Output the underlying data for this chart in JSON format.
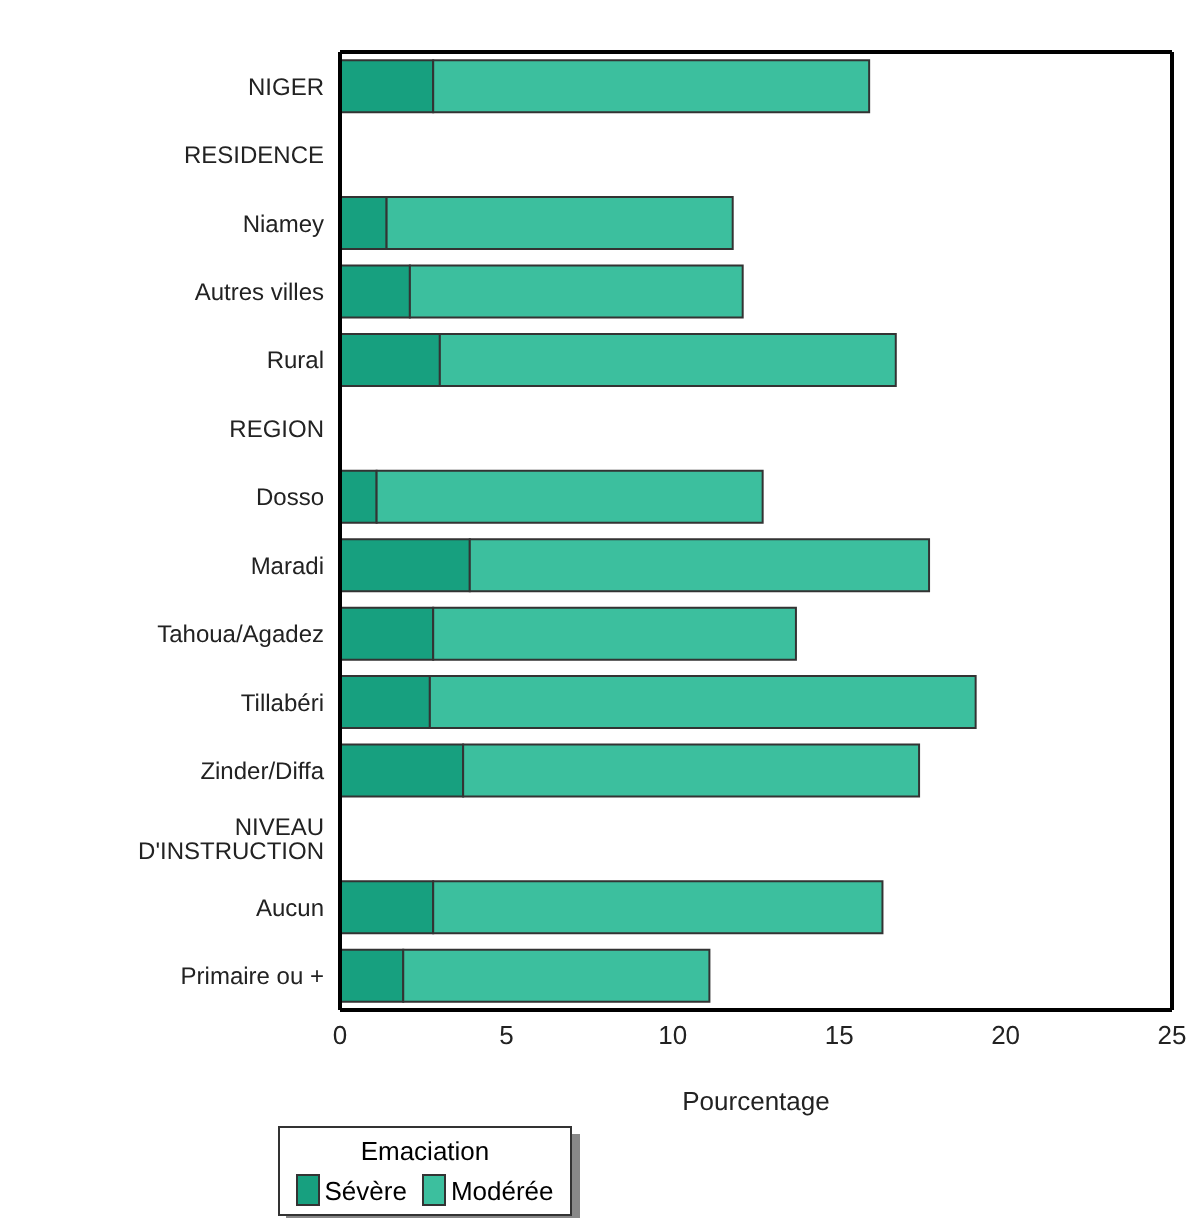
{
  "chart_data": {
    "type": "bar",
    "orientation": "horizontal",
    "stacked": true,
    "categories": [
      "NIGER",
      "RESIDENCE",
      "Niamey",
      "Autres villes",
      "Rural",
      "REGION",
      "Dosso",
      "Maradi",
      "Tahoua/Agadez",
      "Tillabéri",
      "Zinder/Diffa",
      "NIVEAU D'INSTRUCTION",
      "Aucun",
      "Primaire ou +"
    ],
    "series": [
      {
        "name": "Sévère",
        "color": "#17a07f",
        "values": [
          2.8,
          null,
          1.4,
          2.1,
          3.0,
          null,
          1.1,
          3.9,
          2.8,
          2.7,
          3.7,
          null,
          2.8,
          1.9
        ]
      },
      {
        "name": "Modérée",
        "color": "#3cbf9e",
        "values": [
          13.1,
          null,
          10.4,
          10.0,
          13.7,
          null,
          11.6,
          13.8,
          10.9,
          16.4,
          13.7,
          null,
          13.5,
          9.2
        ]
      }
    ],
    "xlabel": "Pourcentage",
    "legend_title": "Emaciation",
    "legend": "bottom",
    "xlim": [
      0,
      25
    ],
    "xticks": [
      0,
      5,
      10,
      15,
      20,
      25
    ],
    "grid": false
  }
}
